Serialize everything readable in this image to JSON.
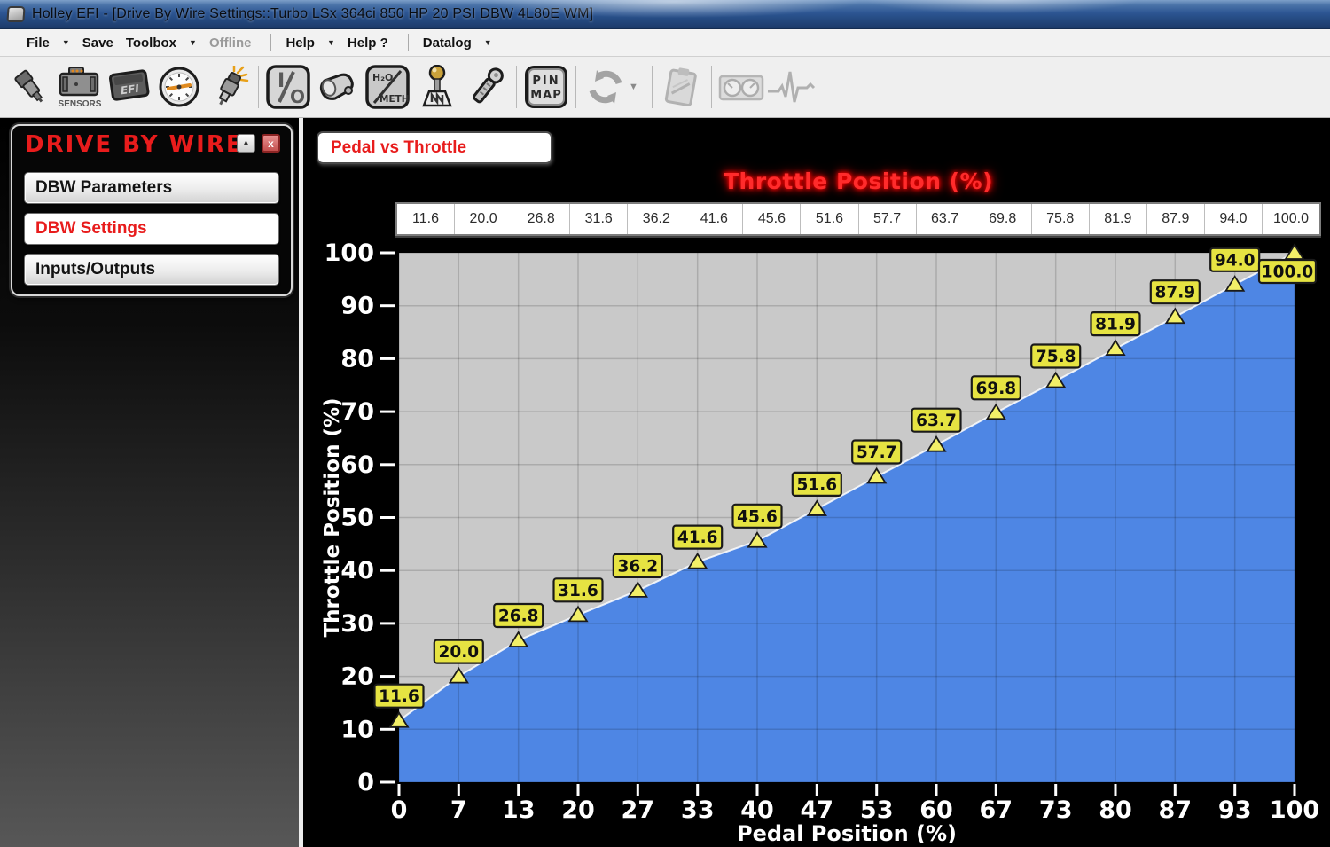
{
  "title_bar": {
    "title": "Holley EFI - [Drive By Wire Settings::Turbo LSx 364ci 850 HP 20 PSI DBW 4L80E WM]"
  },
  "menu_bar": {
    "items": [
      {
        "label": "File",
        "arrow": true,
        "disabled": false
      },
      {
        "label": "Save",
        "arrow": false,
        "disabled": false
      },
      {
        "label": "Toolbox",
        "arrow": true,
        "disabled": false
      },
      {
        "label": "Offline",
        "arrow": false,
        "disabled": true
      },
      {
        "sep": true
      },
      {
        "label": "Help",
        "arrow": true,
        "disabled": false
      },
      {
        "label": "Help ?",
        "arrow": false,
        "disabled": false
      },
      {
        "sep": true
      },
      {
        "label": "Datalog",
        "arrow": true,
        "disabled": false
      }
    ]
  },
  "toolbar": {
    "icons": [
      {
        "name": "fuel-injector-icon",
        "disabled": false
      },
      {
        "name": "sensors-icon",
        "labels": [
          "SENSORS"
        ],
        "disabled": false
      },
      {
        "name": "efi-module-icon",
        "labels": [
          "EFI"
        ],
        "disabled": false
      },
      {
        "name": "gauge-icon",
        "disabled": false
      },
      {
        "name": "spark-plug-icon",
        "disabled": false
      },
      {
        "name": "io-button-icon",
        "labels": [
          "I",
          "O"
        ],
        "disabled": false
      },
      {
        "name": "horn-icon",
        "disabled": false
      },
      {
        "name": "water-meth-icon",
        "labels": [
          "H₂O",
          "METH"
        ],
        "disabled": false
      },
      {
        "name": "shifter-icon",
        "disabled": false
      },
      {
        "name": "ignition-key-icon",
        "disabled": false
      },
      {
        "name": "pin-map-icon",
        "labels": [
          "PIN",
          "MAP"
        ],
        "disabled": false
      },
      {
        "name": "sync-icon",
        "disabled": true
      },
      {
        "name": "datalog-clipboard-icon",
        "disabled": true
      },
      {
        "name": "gauges-panel-icon",
        "disabled": true
      },
      {
        "name": "pulse-icon",
        "disabled": true
      }
    ]
  },
  "sidebar": {
    "panel_title": "DRIVE BY WIRE",
    "minimize_glyph": "▲",
    "close_glyph": "x",
    "buttons": [
      {
        "label": "DBW Parameters",
        "selected": false
      },
      {
        "label": "DBW Settings",
        "selected": true
      },
      {
        "label": "Inputs/Outputs",
        "selected": false
      }
    ]
  },
  "chart_header": {
    "curve_label": "Pedal vs Throttle",
    "table_title": "Throttle Position (%)"
  },
  "chart_data": {
    "type": "area",
    "title": "Pedal vs Throttle",
    "xlabel": "Pedal Position (%)",
    "ylabel": "Throttle Position (%)",
    "xlim": [
      0,
      100
    ],
    "ylim": [
      0,
      100
    ],
    "grid": true,
    "x_tick_labels": [
      "0",
      "7",
      "13",
      "20",
      "27",
      "33",
      "40",
      "47",
      "53",
      "60",
      "67",
      "73",
      "80",
      "87",
      "93",
      "100"
    ],
    "y_ticks": [
      0,
      10,
      20,
      30,
      40,
      50,
      60,
      70,
      80,
      90,
      100
    ],
    "x": [
      0,
      6.67,
      13.33,
      20,
      26.67,
      33.33,
      40,
      46.67,
      53.33,
      60,
      66.67,
      73.33,
      80,
      86.67,
      93.33,
      100
    ],
    "values": [
      11.6,
      20.0,
      26.8,
      31.6,
      36.2,
      41.6,
      45.6,
      51.6,
      57.7,
      63.7,
      69.8,
      75.8,
      81.9,
      87.9,
      94.0,
      100.0
    ],
    "value_labels": [
      "11.6",
      "20.0",
      "26.8",
      "31.6",
      "36.2",
      "41.6",
      "45.6",
      "51.6",
      "57.7",
      "63.7",
      "69.8",
      "75.8",
      "81.9",
      "87.9",
      "94.0",
      "100.0"
    ],
    "colors": {
      "fill": "#4e86e4",
      "plot_bg": "#c9c9c9",
      "grid": "rgba(0,0,0,0.15)",
      "curve_line": "#ffffff",
      "marker": "#f2ef68",
      "badge_bg": "#e6e342",
      "badge_border": "#1a1a1a",
      "axis_text": "#ffffff"
    }
  }
}
